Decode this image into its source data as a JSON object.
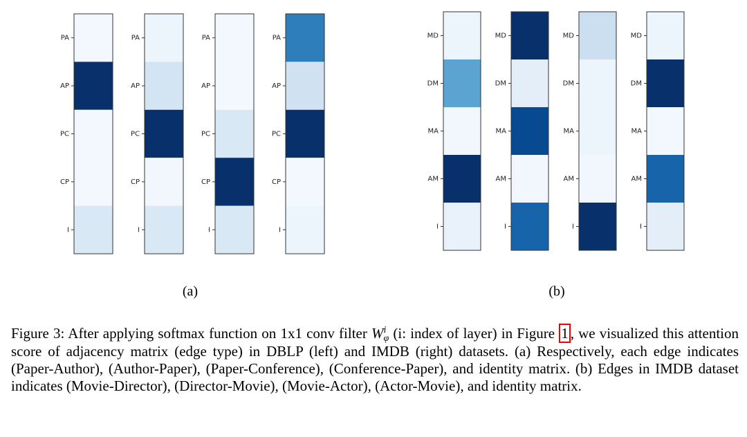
{
  "chart_data": [
    {
      "type": "heatmap",
      "cmap": "Blues",
      "label": "(a)",
      "categories": [
        "PA",
        "AP",
        "PC",
        "CP",
        "I"
      ],
      "series": [
        {
          "values": [
            0.02,
            1.0,
            0.02,
            0.02,
            0.15
          ]
        },
        {
          "values": [
            0.05,
            0.18,
            1.0,
            0.03,
            0.15
          ]
        },
        {
          "values": [
            0.02,
            0.02,
            0.15,
            1.0,
            0.15
          ]
        },
        {
          "values": [
            0.7,
            0.2,
            1.0,
            0.02,
            0.05
          ]
        }
      ]
    },
    {
      "type": "heatmap",
      "cmap": "Blues",
      "label": "(b)",
      "categories": [
        "MD",
        "DM",
        "MA",
        "AM",
        "I"
      ],
      "series": [
        {
          "values": [
            0.05,
            0.55,
            0.03,
            1.0,
            0.07
          ]
        },
        {
          "values": [
            1.0,
            0.1,
            0.9,
            0.03,
            0.8
          ]
        },
        {
          "values": [
            0.22,
            0.05,
            0.05,
            0.03,
            1.0
          ]
        },
        {
          "values": [
            0.05,
            1.0,
            0.02,
            0.8,
            0.1
          ]
        }
      ]
    }
  ],
  "caption": {
    "lead": "Figure 3: After applying softmax function on 1x1 conv filter ",
    "math_base": "W",
    "math_sub": "φ",
    "math_sup": "i",
    "middle": " (i: index of layer) in Figure ",
    "ref": "1",
    "rest": ", we visualized this attention score of adjacency matrix (edge type) in DBLP (left) and IMDB (right) datasets. (a) Respectively, each edge indicates (Paper-Author), (Author-Paper), (Paper-Conference), (Conference-Paper), and identity matrix. (b) Edges in IMDB dataset indicates (Movie-Director), (Director-Movie), (Movie-Actor), (Actor-Movie), and identity matrix."
  }
}
